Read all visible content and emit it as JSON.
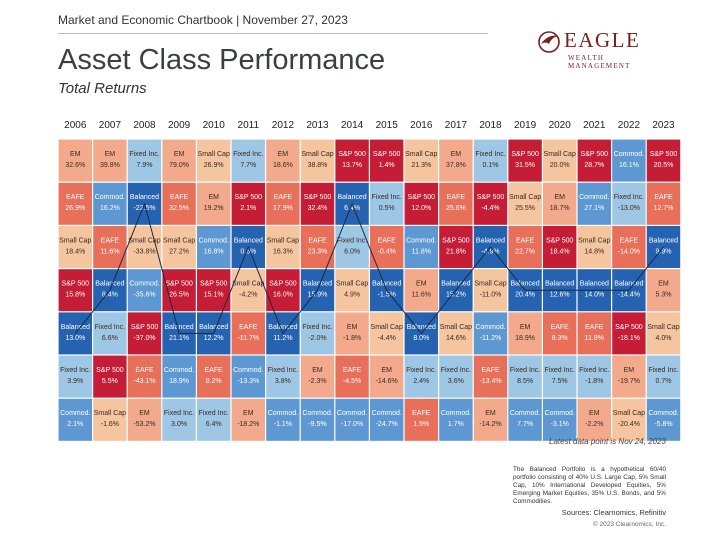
{
  "header": {
    "top_line": "Market and Economic Chartbook | November 27, 2023",
    "title": "Asset Class Performance",
    "subtitle": "Total Returns"
  },
  "logo": {
    "name": "EAGLE",
    "tagline": "WEALTH MANAGEMENT",
    "color": "#7a1d1d"
  },
  "colors": {
    "EM": "#f3a98b",
    "Small Cap": "#f4c59f",
    "EAFE": "#e8705a",
    "S&P 500": "#c41d35",
    "Balanced": "#2563b0",
    "Fixed Inc.": "#9dc7e4",
    "Commod.": "#5d98d2"
  },
  "chart_data": {
    "type": "table",
    "title": "Asset Class Performance",
    "subtitle": "Total Returns",
    "years": [
      "2006",
      "2007",
      "2008",
      "2009",
      "2010",
      "2011",
      "2012",
      "2013",
      "2014",
      "2015",
      "2016",
      "2017",
      "2018",
      "2019",
      "2020",
      "2021",
      "2022",
      "2023"
    ],
    "columns": [
      [
        [
          "EM",
          "32.6%"
        ],
        [
          "EAFE",
          "26.9%"
        ],
        [
          "Small Cap",
          "18.4%"
        ],
        [
          "S&P 500",
          "15.8%"
        ],
        [
          "Balanced",
          "13.0%"
        ],
        [
          "Fixed Inc.",
          "3.9%"
        ],
        [
          "Commod.",
          "2.1%"
        ]
      ],
      [
        [
          "EM",
          "39.8%"
        ],
        [
          "Commod.",
          "16.2%"
        ],
        [
          "EAFE",
          "11.6%"
        ],
        [
          "Balanced",
          "8.4%"
        ],
        [
          "Fixed Inc.",
          "6.6%"
        ],
        [
          "S&P 500",
          "5.5%"
        ],
        [
          "Small Cap",
          "-1.6%"
        ]
      ],
      [
        [
          "Fixed Inc.",
          "7.9%"
        ],
        [
          "Balanced",
          "-22.5%"
        ],
        [
          "Small Cap",
          "-33.8%"
        ],
        [
          "Commod.",
          "-35.6%"
        ],
        [
          "S&P 500",
          "-37.0%"
        ],
        [
          "EAFE",
          "-43.1%"
        ],
        [
          "EM",
          "-53.2%"
        ]
      ],
      [
        [
          "EM",
          "79.0%"
        ],
        [
          "EAFE",
          "32.5%"
        ],
        [
          "Small Cap",
          "27.2%"
        ],
        [
          "S&P 500",
          "26.5%"
        ],
        [
          "Balanced",
          "21.1%"
        ],
        [
          "Commod.",
          "18.9%"
        ],
        [
          "Fixed Inc.",
          "3.0%"
        ]
      ],
      [
        [
          "Small Cap",
          "26.9%"
        ],
        [
          "EM",
          "19.2%"
        ],
        [
          "Commod.",
          "16.8%"
        ],
        [
          "S&P 500",
          "15.1%"
        ],
        [
          "Balanced",
          "12.2%"
        ],
        [
          "EAFE",
          "8.2%"
        ],
        [
          "Fixed Inc.",
          "6.4%"
        ]
      ],
      [
        [
          "Fixed Inc.",
          "7.7%"
        ],
        [
          "S&P 500",
          "2.1%"
        ],
        [
          "Balanced",
          "0.6%"
        ],
        [
          "Small Cap",
          "-4.2%"
        ],
        [
          "EAFE",
          "-11.7%"
        ],
        [
          "Commod.",
          "-13.3%"
        ],
        [
          "EM",
          "-18.2%"
        ]
      ],
      [
        [
          "EM",
          "18.6%"
        ],
        [
          "EAFE",
          "17.9%"
        ],
        [
          "Small Cap",
          "16.3%"
        ],
        [
          "S&P 500",
          "16.0%"
        ],
        [
          "Balanced",
          "11.2%"
        ],
        [
          "Fixed Inc.",
          "3.8%"
        ],
        [
          "Commod.",
          "-1.1%"
        ]
      ],
      [
        [
          "Small Cap",
          "38.8%"
        ],
        [
          "S&P 500",
          "32.4%"
        ],
        [
          "EAFE",
          "23.3%"
        ],
        [
          "Balanced",
          "15.9%"
        ],
        [
          "Fixed Inc.",
          "-2.0%"
        ],
        [
          "EM",
          "-2.3%"
        ],
        [
          "Commod.",
          "-9.5%"
        ]
      ],
      [
        [
          "S&P 500",
          "13.7%"
        ],
        [
          "Balanced",
          "6.4%"
        ],
        [
          "Fixed Inc.",
          "6.0%"
        ],
        [
          "Small Cap",
          "4.9%"
        ],
        [
          "EM",
          "-1.8%"
        ],
        [
          "EAFE",
          "-4.5%"
        ],
        [
          "Commod.",
          "-17.0%"
        ]
      ],
      [
        [
          "S&P 500",
          "1.4%"
        ],
        [
          "Fixed Inc.",
          "0.5%"
        ],
        [
          "EAFE",
          "-0.4%"
        ],
        [
          "Balanced",
          "-1.5%"
        ],
        [
          "Small Cap",
          "-4.4%"
        ],
        [
          "EM",
          "-14.6%"
        ],
        [
          "Commod.",
          "-24.7%"
        ]
      ],
      [
        [
          "Small Cap",
          "21.3%"
        ],
        [
          "S&P 500",
          "12.0%"
        ],
        [
          "Commod.",
          "11.8%"
        ],
        [
          "EM",
          "11.6%"
        ],
        [
          "Balanced",
          "8.0%"
        ],
        [
          "Fixed Inc.",
          "2.4%"
        ],
        [
          "EAFE",
          "1.5%"
        ]
      ],
      [
        [
          "EM",
          "37.8%"
        ],
        [
          "EAFE",
          "25.6%"
        ],
        [
          "S&P 500",
          "21.8%"
        ],
        [
          "Balanced",
          "15.2%"
        ],
        [
          "Small Cap",
          "14.6%"
        ],
        [
          "Fixed Inc.",
          "3.6%"
        ],
        [
          "Commod.",
          "1.7%"
        ]
      ],
      [
        [
          "Fixed Inc.",
          "0.1%"
        ],
        [
          "S&P 500",
          "-4.4%"
        ],
        [
          "Balanced",
          "-4.9%"
        ],
        [
          "Small Cap",
          "-11.0%"
        ],
        [
          "Commod.",
          "-11.2%"
        ],
        [
          "EAFE",
          "-13.4%"
        ],
        [
          "EM",
          "-14.2%"
        ]
      ],
      [
        [
          "S&P 500",
          "31.5%"
        ],
        [
          "Small Cap",
          "25.5%"
        ],
        [
          "EAFE",
          "22.7%"
        ],
        [
          "Balanced",
          "20.4%"
        ],
        [
          "EM",
          "18.9%"
        ],
        [
          "Fixed Inc.",
          "8.5%"
        ],
        [
          "Commod.",
          "7.7%"
        ]
      ],
      [
        [
          "Small Cap",
          "20.0%"
        ],
        [
          "EM",
          "18.7%"
        ],
        [
          "S&P 500",
          "18.4%"
        ],
        [
          "Balanced",
          "12.6%"
        ],
        [
          "EAFE",
          "8.3%"
        ],
        [
          "Fixed Inc.",
          "7.5%"
        ],
        [
          "Commod.",
          "-3.1%"
        ]
      ],
      [
        [
          "S&P 500",
          "28.7%"
        ],
        [
          "Commod.",
          "27.1%"
        ],
        [
          "Small Cap",
          "14.8%"
        ],
        [
          "Balanced",
          "14.0%"
        ],
        [
          "EAFE",
          "11.8%"
        ],
        [
          "Fixed Inc.",
          "-1.8%"
        ],
        [
          "EM",
          "-2.2%"
        ]
      ],
      [
        [
          "Commod.",
          "16.1%"
        ],
        [
          "Fixed Inc.",
          "-13.0%"
        ],
        [
          "EAFE",
          "-14.0%"
        ],
        [
          "Balanced",
          "-14.4%"
        ],
        [
          "S&P 500",
          "-18.1%"
        ],
        [
          "EM",
          "-19.7%"
        ],
        [
          "Small Cap",
          "-20.4%"
        ]
      ],
      [
        [
          "S&P 500",
          "20.5%"
        ],
        [
          "EAFE",
          "12.7%"
        ],
        [
          "Balanced",
          "9.9%"
        ],
        [
          "EM",
          "5.3%"
        ],
        [
          "Small Cap",
          "4.0%"
        ],
        [
          "Fixed Inc.",
          "0.7%"
        ],
        [
          "Commod.",
          "-5.8%"
        ]
      ]
    ],
    "connector_series": "Balanced"
  },
  "notes": {
    "latest_data": "Latest data point is Nov 24, 2023",
    "footnote": "The Balanced Portfolio is a hypothetical 60/40 portfolio consisting of 40% U.S. Large Cap, 5% Small Cap, 10% International Developed Equities, 5% Emerging Market Equities, 35% U.S. Bonds, and 5% Commodities.",
    "sources": "Sources: Clearnomics, Refinitiv",
    "copyright": "© 2023 Clearnomics, Inc."
  }
}
